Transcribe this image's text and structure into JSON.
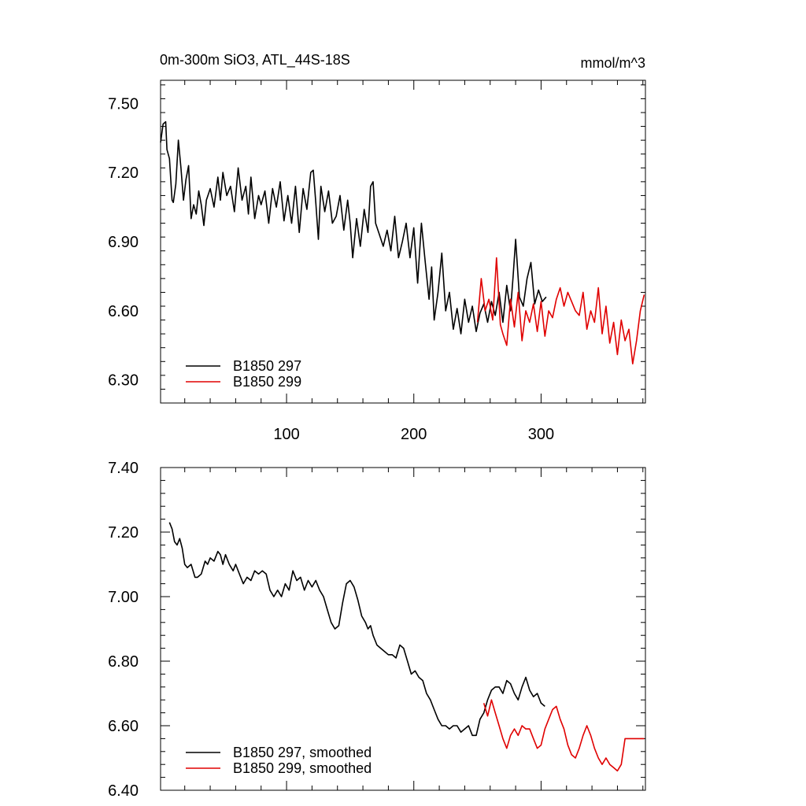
{
  "header": {
    "title": "0m-300m SiO3, ATL_44S-18S",
    "units": "mmol/m^3"
  },
  "colors": {
    "series_297": "#000000",
    "series_299": "#e00000",
    "axes": "#000000",
    "background": "#ffffff"
  },
  "chart_data": [
    {
      "type": "line",
      "title": "0m-300m SiO3, ATL_44S-18S",
      "units": "mmol/m^3",
      "xlabel": "",
      "ylabel": "",
      "xlim": [
        1,
        382
      ],
      "ylim": [
        6.2,
        7.6
      ],
      "xticks": [
        100,
        200,
        300
      ],
      "xtick_labels": [
        "100",
        "200",
        "300"
      ],
      "yticks": [
        6.3,
        6.6,
        6.9,
        7.2,
        7.5
      ],
      "ytick_labels": [
        "6.30",
        "6.60",
        "6.90",
        "7.20",
        "7.50"
      ],
      "grid": false,
      "legend_position": "bottom-left",
      "series": [
        {
          "name": "B1850 297",
          "color": "#000000",
          "x": [
            1,
            3,
            5,
            6,
            8,
            10,
            11,
            13,
            15,
            17,
            19,
            21,
            23,
            25,
            27,
            29,
            31,
            33,
            35,
            37,
            40,
            43,
            46,
            48,
            50,
            53,
            56,
            59,
            62,
            65,
            68,
            70,
            72,
            75,
            78,
            80,
            83,
            86,
            89,
            92,
            95,
            98,
            101,
            104,
            107,
            110,
            113,
            116,
            119,
            121,
            123,
            125,
            127,
            130,
            133,
            136,
            139,
            142,
            145,
            148,
            150,
            152,
            155,
            158,
            161,
            164,
            166,
            168,
            170,
            173,
            176,
            179,
            182,
            185,
            188,
            191,
            194,
            197,
            200,
            203,
            206,
            209,
            212,
            214,
            216,
            219,
            222,
            225,
            228,
            231,
            234,
            237,
            240,
            243,
            246,
            249,
            252,
            255,
            258,
            261,
            264,
            267,
            270,
            273,
            276,
            278,
            280,
            283,
            286,
            289,
            292,
            295,
            298,
            301,
            304
          ],
          "values": [
            7.33,
            7.41,
            7.42,
            7.3,
            7.26,
            7.08,
            7.07,
            7.15,
            7.34,
            7.22,
            7.08,
            7.17,
            7.23,
            7.0,
            7.06,
            7.02,
            7.12,
            7.06,
            6.97,
            7.08,
            7.13,
            7.05,
            7.18,
            7.08,
            7.2,
            7.1,
            7.14,
            7.03,
            7.22,
            7.08,
            7.14,
            7.02,
            7.18,
            7.0,
            7.1,
            7.06,
            7.12,
            6.98,
            7.13,
            7.05,
            7.16,
            6.99,
            7.1,
            6.98,
            7.14,
            6.94,
            7.13,
            7.04,
            7.2,
            7.21,
            7.07,
            6.91,
            7.14,
            7.03,
            7.12,
            6.98,
            7.01,
            7.1,
            6.95,
            7.08,
            6.98,
            6.83,
            7.0,
            6.88,
            7.04,
            6.94,
            7.14,
            7.16,
            6.98,
            6.93,
            6.88,
            6.95,
            6.86,
            7.01,
            6.83,
            6.9,
            6.98,
            6.83,
            6.96,
            6.72,
            6.98,
            6.81,
            6.65,
            6.79,
            6.56,
            6.68,
            6.85,
            6.6,
            6.68,
            6.52,
            6.61,
            6.5,
            6.65,
            6.55,
            6.62,
            6.51,
            6.59,
            6.63,
            6.55,
            6.64,
            6.58,
            6.68,
            6.55,
            6.71,
            6.6,
            6.75,
            6.91,
            6.66,
            6.62,
            6.74,
            6.81,
            6.63,
            6.69,
            6.64,
            6.66
          ]
        },
        {
          "name": "B1850 299",
          "color": "#e00000",
          "x": [
            250,
            253,
            256,
            259,
            262,
            265,
            268,
            270,
            273,
            276,
            279,
            282,
            285,
            288,
            291,
            294,
            297,
            300,
            303,
            306,
            309,
            312,
            315,
            318,
            321,
            324,
            327,
            330,
            333,
            336,
            339,
            342,
            345,
            348,
            351,
            354,
            357,
            360,
            363,
            366,
            369,
            372,
            375,
            378,
            381
          ],
          "values": [
            6.55,
            6.74,
            6.6,
            6.65,
            6.56,
            6.83,
            6.54,
            6.5,
            6.45,
            6.65,
            6.53,
            6.68,
            6.47,
            6.6,
            6.55,
            6.63,
            6.51,
            6.64,
            6.49,
            6.6,
            6.57,
            6.65,
            6.7,
            6.62,
            6.68,
            6.64,
            6.6,
            6.58,
            6.68,
            6.52,
            6.6,
            6.55,
            6.7,
            6.5,
            6.62,
            6.46,
            6.55,
            6.41,
            6.56,
            6.47,
            6.52,
            6.37,
            6.47,
            6.6,
            6.67
          ]
        }
      ]
    },
    {
      "type": "line",
      "title": "",
      "xlabel": "",
      "ylabel": "",
      "xlim": [
        1,
        382
      ],
      "ylim": [
        6.4,
        7.4
      ],
      "xticks": [
        100,
        200,
        300
      ],
      "xtick_labels": [],
      "yticks": [
        6.4,
        6.6,
        6.8,
        7.0,
        7.2,
        7.4
      ],
      "ytick_labels": [
        "6.40",
        "6.60",
        "6.80",
        "7.00",
        "7.20",
        "7.40"
      ],
      "grid": false,
      "legend_position": "bottom-left",
      "series": [
        {
          "name": "B1850 297, smoothed",
          "color": "#000000",
          "x": [
            8,
            10,
            12,
            14,
            16,
            18,
            20,
            22,
            25,
            28,
            30,
            33,
            36,
            38,
            40,
            43,
            46,
            48,
            50,
            52,
            55,
            58,
            60,
            63,
            66,
            69,
            72,
            75,
            78,
            81,
            84,
            87,
            90,
            93,
            96,
            99,
            102,
            105,
            108,
            111,
            114,
            117,
            120,
            123,
            126,
            129,
            132,
            135,
            138,
            141,
            144,
            147,
            150,
            153,
            156,
            159,
            162,
            164,
            166,
            168,
            171,
            174,
            177,
            180,
            183,
            186,
            189,
            192,
            195,
            198,
            201,
            204,
            207,
            210,
            213,
            216,
            219,
            222,
            225,
            228,
            231,
            234,
            237,
            240,
            243,
            246,
            249,
            252,
            255,
            258,
            261,
            264,
            267,
            270,
            273,
            276,
            279,
            282,
            285,
            288,
            291,
            294,
            297,
            300,
            303
          ],
          "values": [
            7.23,
            7.21,
            7.17,
            7.16,
            7.18,
            7.15,
            7.1,
            7.09,
            7.1,
            7.06,
            7.06,
            7.07,
            7.11,
            7.1,
            7.12,
            7.11,
            7.14,
            7.13,
            7.1,
            7.13,
            7.1,
            7.08,
            7.1,
            7.07,
            7.04,
            7.06,
            7.05,
            7.08,
            7.07,
            7.08,
            7.07,
            7.02,
            7.0,
            7.02,
            7.0,
            7.04,
            7.02,
            7.08,
            7.05,
            7.06,
            7.02,
            7.05,
            7.03,
            7.05,
            7.02,
            7.0,
            6.96,
            6.92,
            6.9,
            6.91,
            6.98,
            7.04,
            7.05,
            7.03,
            6.99,
            6.94,
            6.92,
            6.9,
            6.91,
            6.88,
            6.85,
            6.84,
            6.83,
            6.82,
            6.82,
            6.81,
            6.85,
            6.84,
            6.8,
            6.76,
            6.77,
            6.75,
            6.74,
            6.7,
            6.68,
            6.65,
            6.62,
            6.6,
            6.6,
            6.59,
            6.6,
            6.6,
            6.58,
            6.59,
            6.6,
            6.57,
            6.57,
            6.62,
            6.64,
            6.68,
            6.71,
            6.72,
            6.72,
            6.7,
            6.74,
            6.73,
            6.7,
            6.68,
            6.72,
            6.75,
            6.71,
            6.69,
            6.7,
            6.67,
            6.66
          ]
        },
        {
          "name": "B1850 299, smoothed",
          "color": "#e00000",
          "x": [
            255,
            258,
            261,
            264,
            267,
            270,
            273,
            276,
            279,
            282,
            285,
            288,
            291,
            294,
            297,
            300,
            303,
            306,
            309,
            312,
            315,
            318,
            321,
            324,
            327,
            330,
            333,
            336,
            339,
            342,
            345,
            348,
            351,
            354,
            357,
            360,
            363,
            366,
            369,
            372,
            375,
            378,
            381
          ],
          "values": [
            6.67,
            6.63,
            6.68,
            6.64,
            6.6,
            6.56,
            6.53,
            6.57,
            6.59,
            6.57,
            6.6,
            6.59,
            6.59,
            6.56,
            6.53,
            6.54,
            6.59,
            6.62,
            6.65,
            6.66,
            6.62,
            6.59,
            6.54,
            6.51,
            6.5,
            6.53,
            6.57,
            6.6,
            6.57,
            6.53,
            6.5,
            6.48,
            6.5,
            6.48,
            6.47,
            6.46,
            6.48,
            6.56,
            6.56,
            6.56,
            6.56,
            6.56,
            6.56
          ]
        }
      ]
    }
  ]
}
